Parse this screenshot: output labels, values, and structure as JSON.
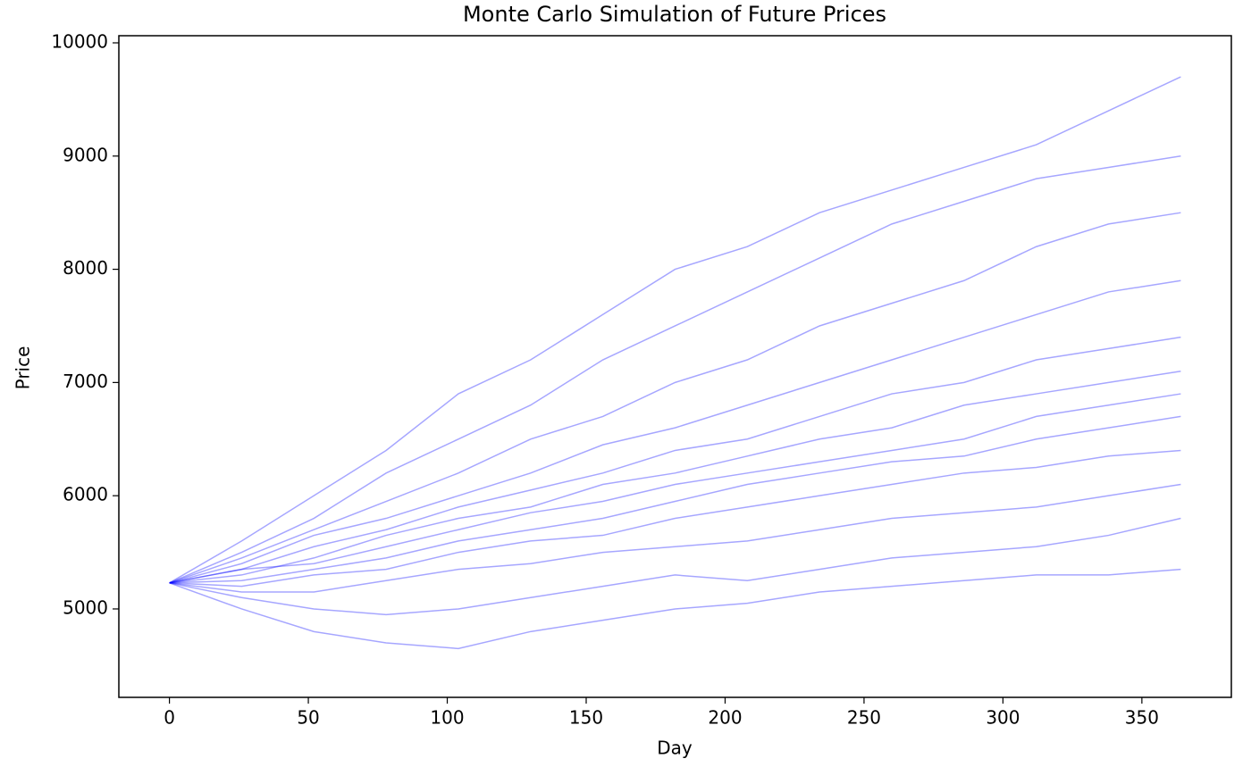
{
  "chart_data": {
    "type": "line",
    "title": "Monte Carlo Simulation of Future Prices",
    "x_label": "Day",
    "y_label": "Price",
    "x": [
      0,
      26,
      52,
      78,
      104,
      130,
      156,
      182,
      208,
      234,
      260,
      286,
      312,
      338,
      364
    ],
    "color": "#0000ff",
    "alpha": 0.35,
    "series": [
      {
        "values": [
          5230,
          5600,
          6000,
          6400,
          6900,
          7200,
          7600,
          8000,
          8200,
          8500,
          8700,
          8900,
          9100,
          9400,
          9700
        ]
      },
      {
        "values": [
          5230,
          5500,
          5800,
          6200,
          6500,
          6800,
          7200,
          7500,
          7800,
          8100,
          8400,
          8600,
          8800,
          8900,
          9000
        ]
      },
      {
        "values": [
          5230,
          5450,
          5700,
          5950,
          6200,
          6500,
          6700,
          7000,
          7200,
          7500,
          7700,
          7900,
          8200,
          8400,
          8500
        ]
      },
      {
        "values": [
          5230,
          5400,
          5650,
          5800,
          6000,
          6200,
          6450,
          6600,
          6800,
          7000,
          7200,
          7400,
          7600,
          7800,
          7900
        ]
      },
      {
        "values": [
          5230,
          5350,
          5550,
          5700,
          5900,
          6050,
          6200,
          6400,
          6500,
          6700,
          6900,
          7000,
          7200,
          7300,
          7400
        ]
      },
      {
        "values": [
          5230,
          5300,
          5450,
          5650,
          5800,
          5900,
          6100,
          6200,
          6350,
          6500,
          6600,
          6800,
          6900,
          7000,
          7100
        ]
      },
      {
        "values": [
          5230,
          5350,
          5400,
          5550,
          5700,
          5850,
          5950,
          6100,
          6200,
          6300,
          6400,
          6500,
          6700,
          6800,
          6900
        ]
      },
      {
        "values": [
          5230,
          5250,
          5350,
          5450,
          5600,
          5700,
          5800,
          5950,
          6100,
          6200,
          6300,
          6350,
          6500,
          6600,
          6700
        ]
      },
      {
        "values": [
          5230,
          5200,
          5300,
          5350,
          5500,
          5600,
          5650,
          5800,
          5900,
          6000,
          6100,
          6200,
          6250,
          6350,
          6400
        ]
      },
      {
        "values": [
          5230,
          5150,
          5150,
          5250,
          5350,
          5400,
          5500,
          5550,
          5600,
          5700,
          5800,
          5850,
          5900,
          6000,
          6100
        ]
      },
      {
        "values": [
          5230,
          5100,
          5000,
          4950,
          5000,
          5100,
          5200,
          5300,
          5250,
          5350,
          5450,
          5500,
          5550,
          5650,
          5800
        ]
      },
      {
        "values": [
          5230,
          5000,
          4800,
          4700,
          4650,
          4800,
          4900,
          5000,
          5050,
          5150,
          5200,
          5250,
          5300,
          5300,
          5350
        ]
      }
    ],
    "xlim": [
      -18.2,
      382.2
    ],
    "ylim": [
      4219,
      10063
    ],
    "xticks": [
      0,
      50,
      100,
      150,
      200,
      250,
      300,
      350
    ],
    "yticks": [
      5000,
      6000,
      7000,
      8000,
      9000,
      10000
    ],
    "grid": false
  }
}
